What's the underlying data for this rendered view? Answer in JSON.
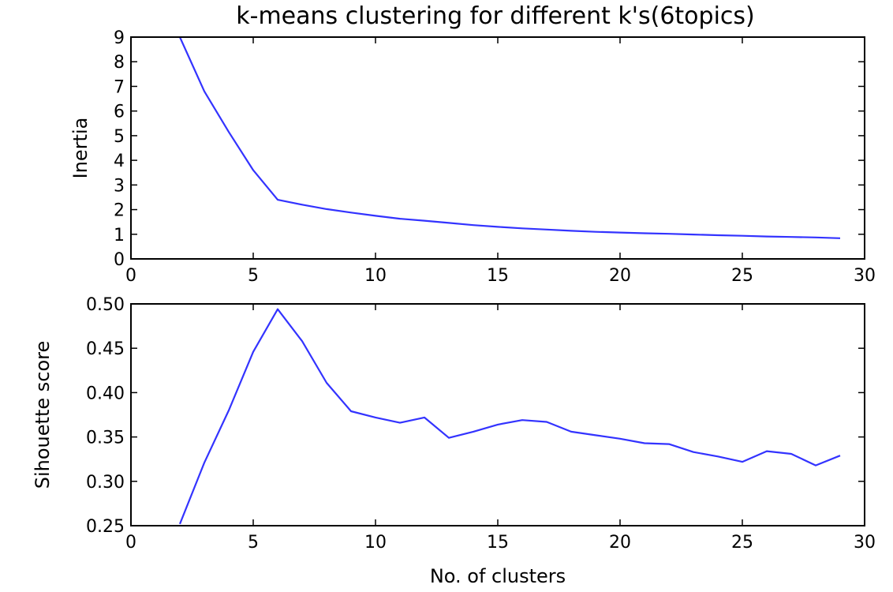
{
  "title": "k-means clustering for different k's(6topics)",
  "colors": {
    "series": "#3333ff",
    "axes": "#000000",
    "background": "#ffffff"
  },
  "chart_data": [
    {
      "type": "line",
      "xlabel": "",
      "ylabel": "Inertia",
      "xlim": [
        0,
        30
      ],
      "ylim": [
        0,
        9
      ],
      "grid": false,
      "xticks": [
        "0",
        "5",
        "10",
        "15",
        "20",
        "25",
        "30"
      ],
      "yticks": [
        "0",
        "1",
        "2",
        "3",
        "4",
        "5",
        "6",
        "7",
        "8",
        "9"
      ],
      "x": [
        2,
        3,
        4,
        5,
        6,
        7,
        8,
        9,
        10,
        11,
        12,
        13,
        14,
        15,
        16,
        17,
        18,
        19,
        20,
        21,
        22,
        23,
        24,
        25,
        26,
        27,
        28,
        29
      ],
      "series": [
        {
          "values": [
            9.0,
            6.8,
            5.15,
            3.6,
            2.4,
            2.2,
            2.02,
            1.88,
            1.75,
            1.63,
            1.55,
            1.46,
            1.37,
            1.3,
            1.24,
            1.19,
            1.14,
            1.1,
            1.07,
            1.04,
            1.02,
            0.99,
            0.96,
            0.94,
            0.91,
            0.89,
            0.87,
            0.84
          ]
        }
      ]
    },
    {
      "type": "line",
      "xlabel": "No. of clusters",
      "ylabel": "Sihouette score",
      "xlim": [
        0,
        30
      ],
      "ylim": [
        0.25,
        0.5
      ],
      "grid": false,
      "xticks": [
        "0",
        "5",
        "10",
        "15",
        "20",
        "25",
        "30"
      ],
      "yticks": [
        "0.25",
        "0.30",
        "0.35",
        "0.40",
        "0.45",
        "0.50"
      ],
      "x": [
        2,
        3,
        4,
        5,
        6,
        7,
        8,
        9,
        10,
        11,
        12,
        13,
        14,
        15,
        16,
        17,
        18,
        19,
        20,
        21,
        22,
        23,
        24,
        25,
        26,
        27,
        28,
        29
      ],
      "series": [
        {
          "values": [
            0.252,
            0.321,
            0.38,
            0.446,
            0.494,
            0.458,
            0.411,
            0.379,
            0.372,
            0.366,
            0.372,
            0.349,
            0.356,
            0.364,
            0.369,
            0.367,
            0.356,
            0.352,
            0.348,
            0.343,
            0.342,
            0.333,
            0.328,
            0.322,
            0.334,
            0.331,
            0.318,
            0.329
          ]
        }
      ]
    }
  ]
}
